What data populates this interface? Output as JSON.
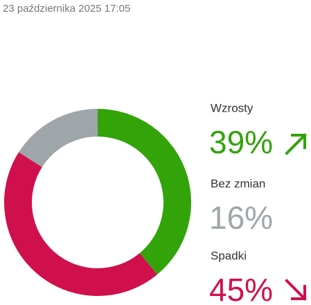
{
  "chart_data": {
    "type": "pie",
    "donut": true,
    "subtitle": "23 października 2025 17:05",
    "categories": [
      "Wzrosty",
      "Bez zmian",
      "Spadki"
    ],
    "values": [
      39,
      16,
      45
    ],
    "value_labels": [
      "39%",
      "16%",
      "45%"
    ],
    "colors": [
      "#33a30a",
      "#9ea6a9",
      "#d0104c"
    ]
  }
}
